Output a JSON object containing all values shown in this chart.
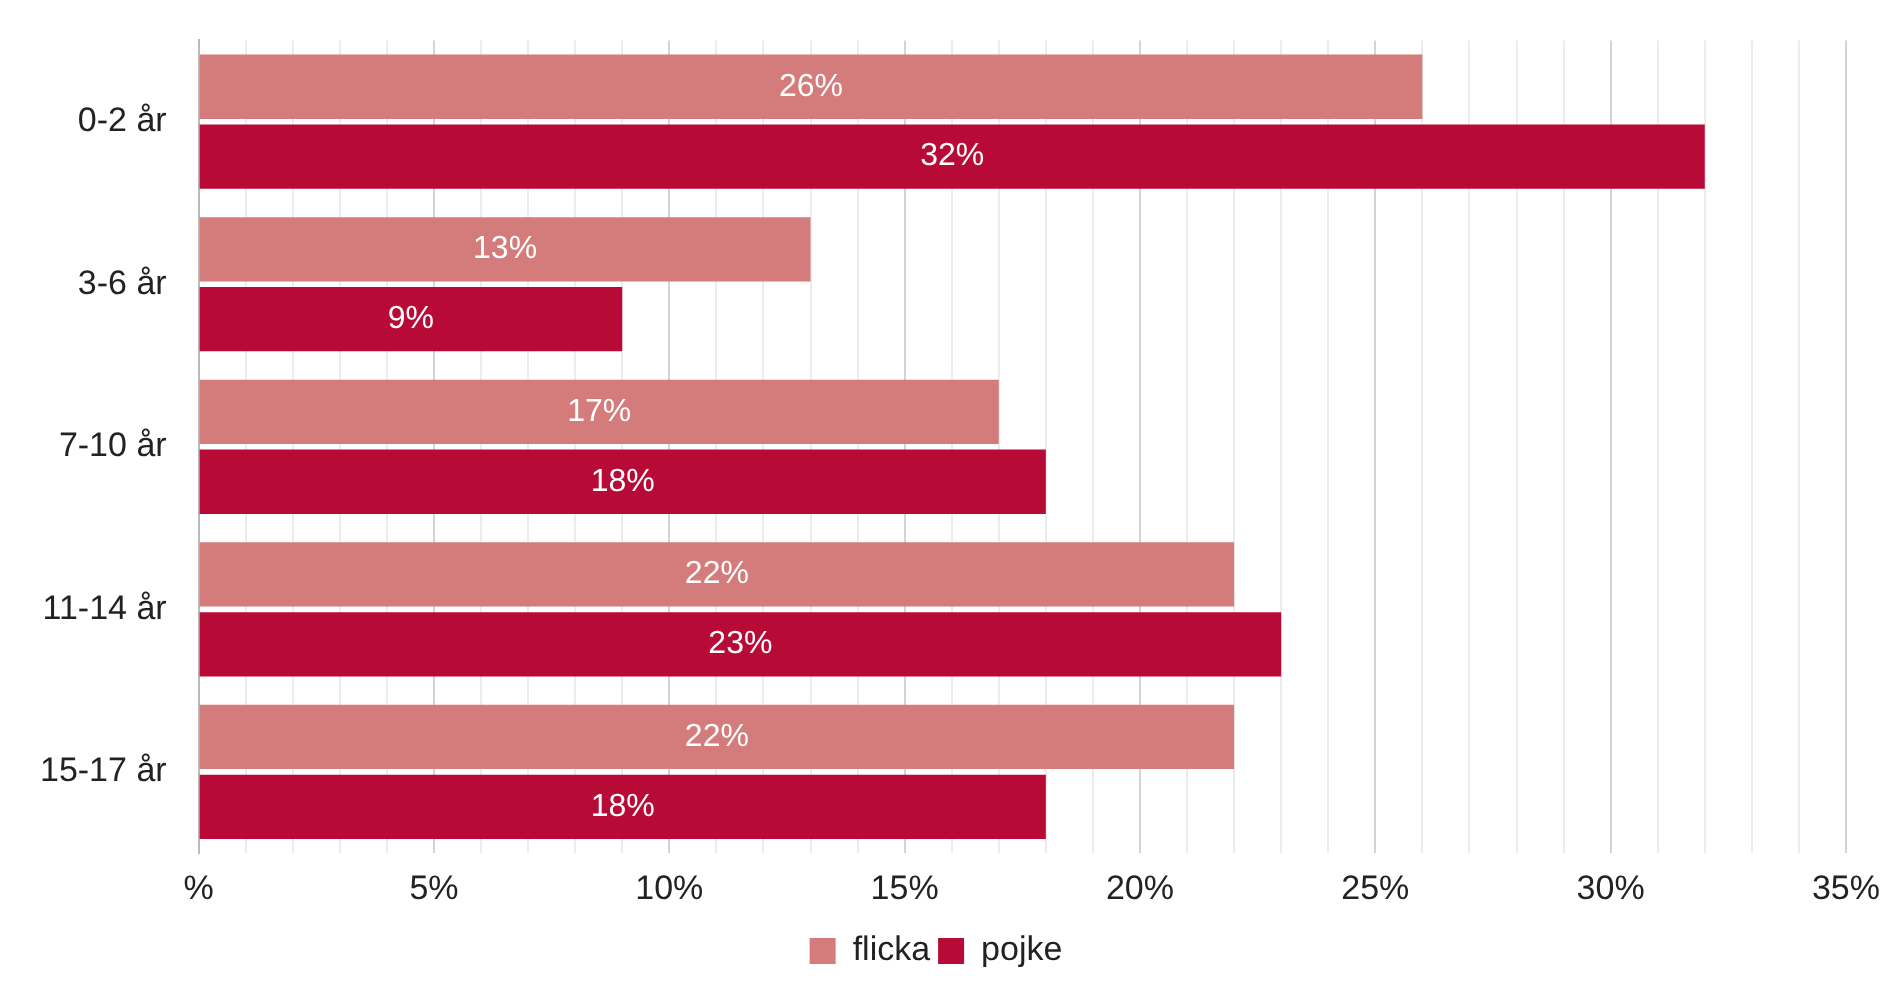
{
  "chart_data": {
    "type": "bar",
    "orientation": "horizontal",
    "categories": [
      "0-2 år",
      "3-6 år",
      "7-10 år",
      "11-14 år",
      "15-17 år"
    ],
    "series": [
      {
        "name": "flicka",
        "color": "#d47b7b",
        "values": [
          26,
          13,
          17,
          22,
          22
        ],
        "value_labels": [
          "26%",
          "13%",
          "17%",
          "22%",
          "22%"
        ]
      },
      {
        "name": "pojke",
        "color": "#b80a36",
        "values": [
          32,
          9,
          18,
          23,
          18
        ],
        "value_labels": [
          "32%",
          "9%",
          "18%",
          "23%",
          "18%"
        ]
      }
    ],
    "xlim": [
      0,
      35
    ],
    "xticks": [
      {
        "value": 0,
        "label": "%"
      },
      {
        "value": 1,
        "label": null
      },
      {
        "value": 2,
        "label": null
      },
      {
        "value": 3,
        "label": null
      },
      {
        "value": 4,
        "label": null
      },
      {
        "value": 5,
        "label": "5%"
      },
      {
        "value": 6,
        "label": null
      },
      {
        "value": 7,
        "label": null
      },
      {
        "value": 8,
        "label": null
      },
      {
        "value": 9,
        "label": null
      },
      {
        "value": 10,
        "label": "10%"
      },
      {
        "value": 11,
        "label": null
      },
      {
        "value": 12,
        "label": null
      },
      {
        "value": 13,
        "label": null
      },
      {
        "value": 14,
        "label": null
      },
      {
        "value": 15,
        "label": "15%"
      },
      {
        "value": 16,
        "label": null
      },
      {
        "value": 17,
        "label": null
      },
      {
        "value": 18,
        "label": null
      },
      {
        "value": 19,
        "label": null
      },
      {
        "value": 20,
        "label": "20%"
      },
      {
        "value": 21,
        "label": null
      },
      {
        "value": 22,
        "label": null
      },
      {
        "value": 23,
        "label": null
      },
      {
        "value": 24,
        "label": null
      },
      {
        "value": 25,
        "label": "25%"
      },
      {
        "value": 26,
        "label": null
      },
      {
        "value": 27,
        "label": null
      },
      {
        "value": 28,
        "label": null
      },
      {
        "value": 29,
        "label": null
      },
      {
        "value": 30,
        "label": "30%"
      },
      {
        "value": 31,
        "label": null
      },
      {
        "value": 32,
        "label": null
      },
      {
        "value": 33,
        "label": null
      },
      {
        "value": 34,
        "label": null
      },
      {
        "value": 35,
        "label": "35%"
      }
    ],
    "grid": "x",
    "legend": "bottom"
  }
}
